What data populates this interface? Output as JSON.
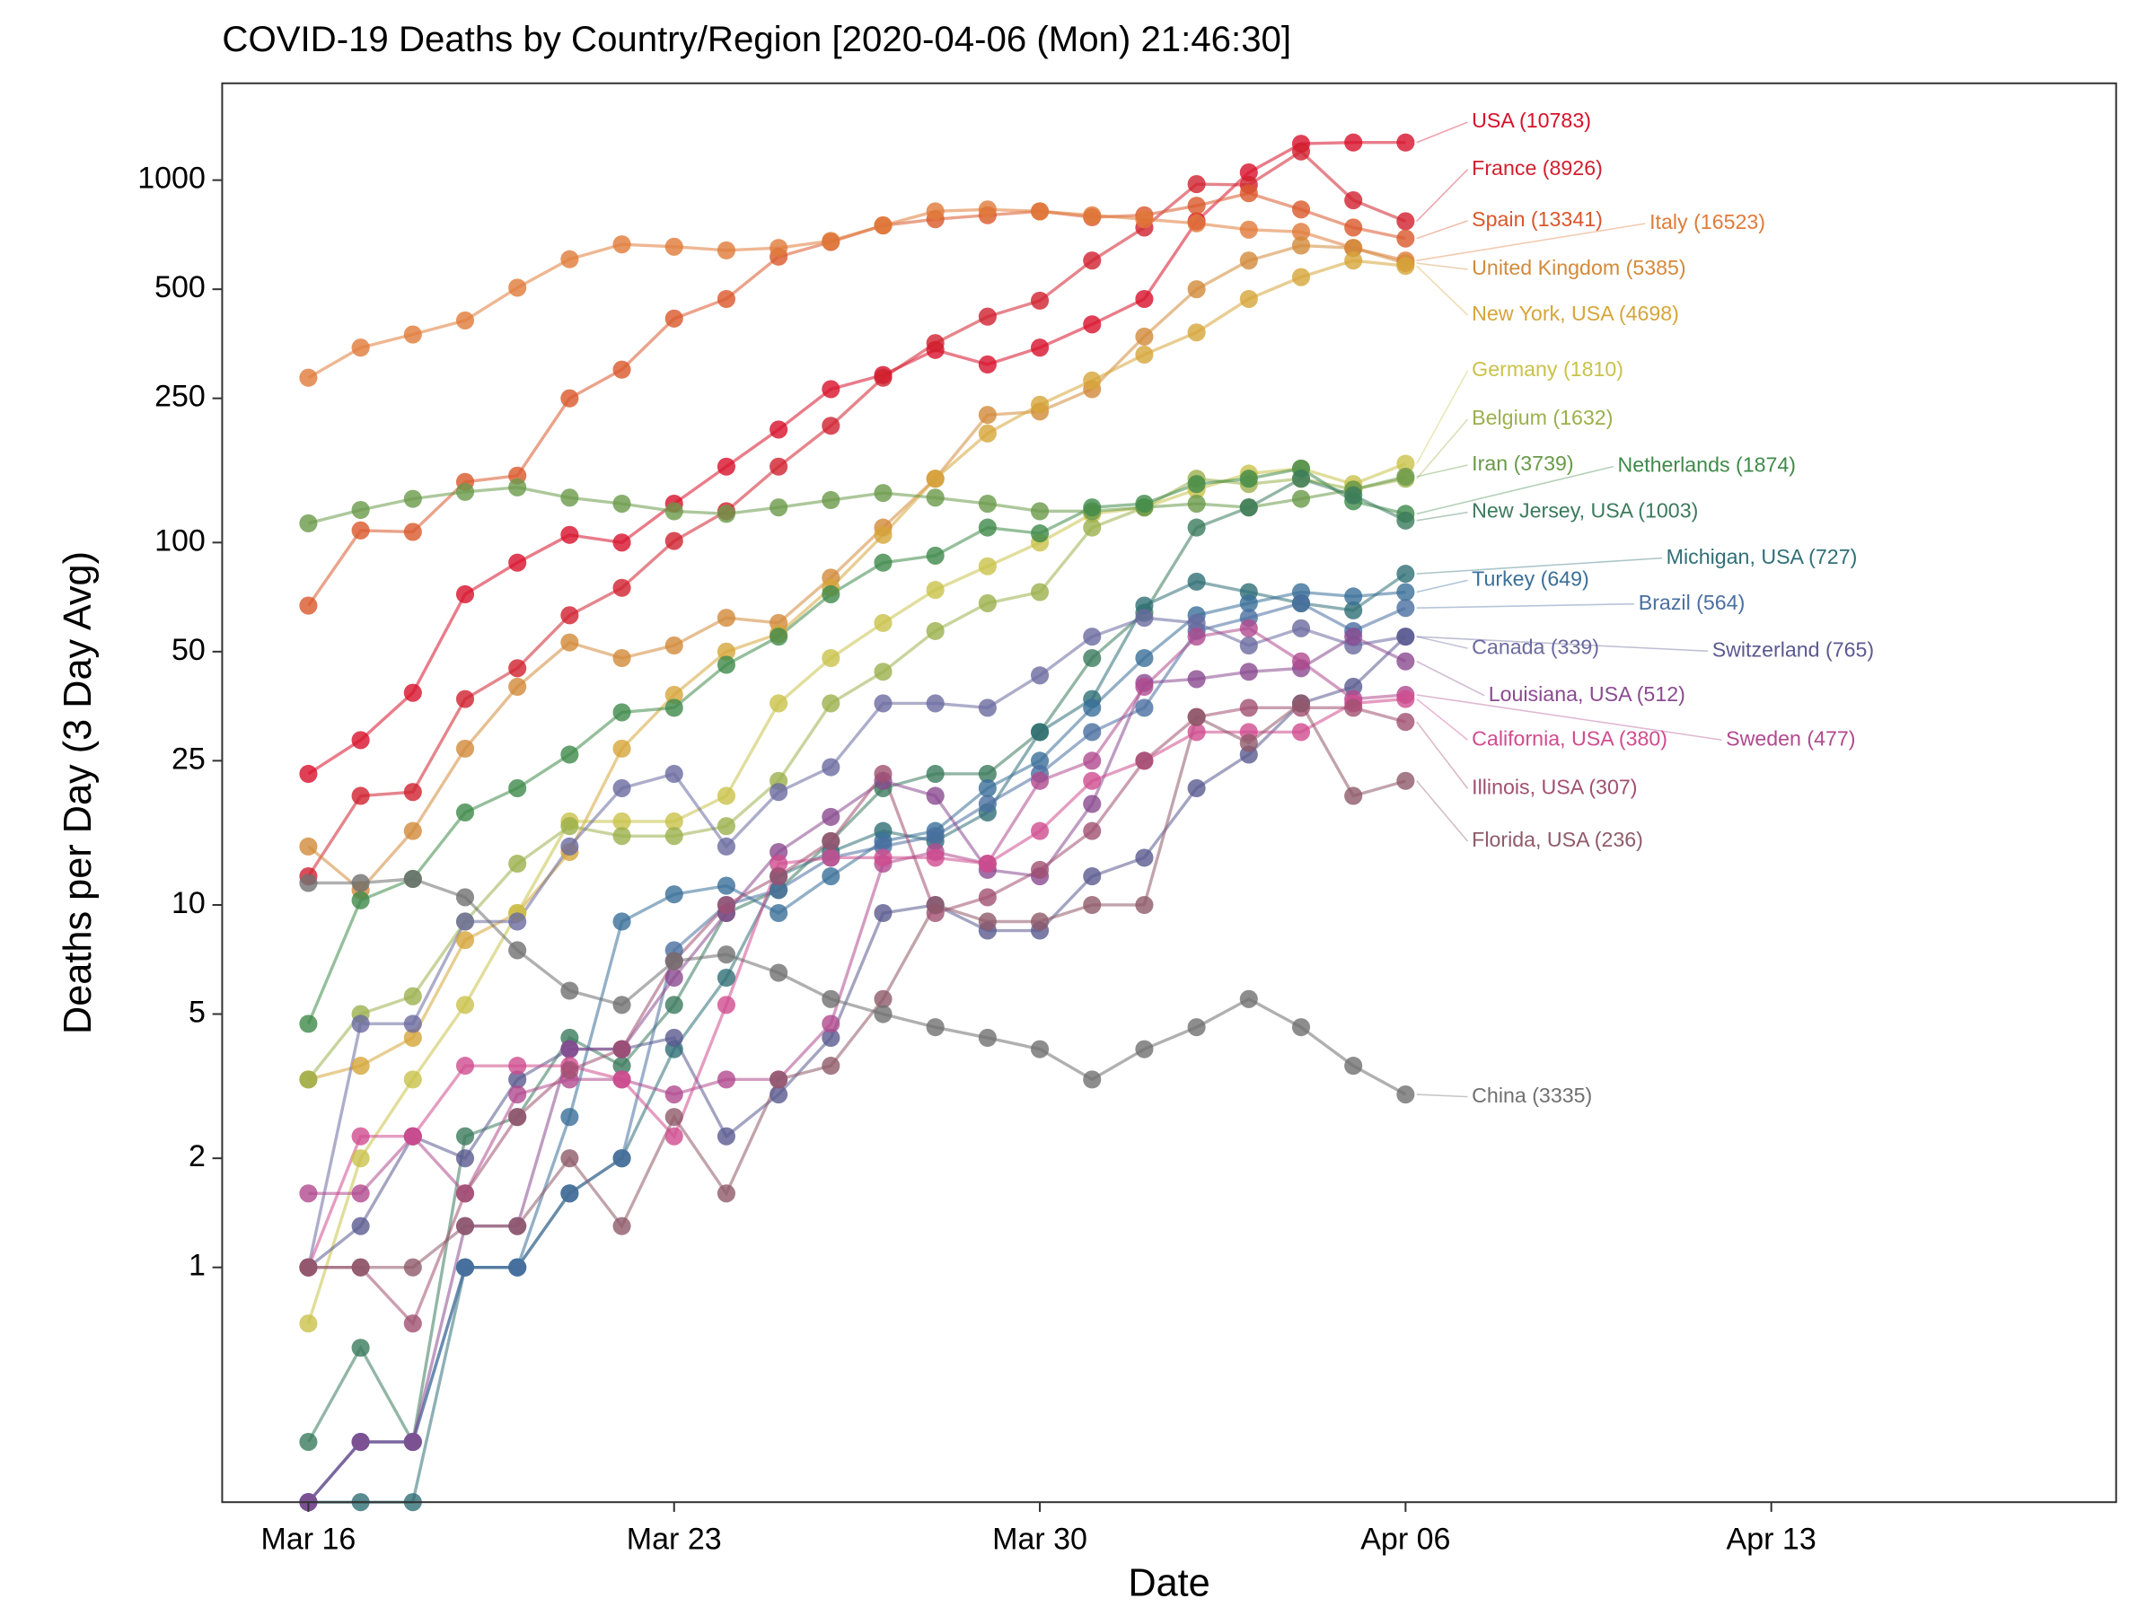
{
  "chart_data": {
    "type": "line",
    "title": "COVID-19 Deaths by Country/Region [2020-04-06 (Mon) 21:46:30]",
    "xlabel": "Date",
    "ylabel": "Deaths per Day (3 Day Avg)",
    "log_y": true,
    "x": [
      0,
      1,
      2,
      3,
      4,
      5,
      6,
      7,
      8,
      9,
      10,
      11,
      12,
      13,
      14,
      15,
      16,
      17,
      18,
      19,
      20,
      21
    ],
    "xlim": [
      -1.65,
      34.6
    ],
    "xticks": [
      {
        "value": 0,
        "label": "Mar 16"
      },
      {
        "value": 7,
        "label": "Mar 23"
      },
      {
        "value": 14,
        "label": "Mar 30"
      },
      {
        "value": 21,
        "label": "Apr 06"
      },
      {
        "value": 28,
        "label": "Apr 13"
      }
    ],
    "ylim": [
      0.225,
      1850
    ],
    "yticks": [
      1,
      2,
      5,
      10,
      25,
      50,
      100,
      250,
      500,
      1000
    ],
    "series": [
      {
        "name": "USA (10783)",
        "color": "#d7102a",
        "values": [
          23,
          28.5,
          38.5,
          72,
          88,
          105,
          100,
          128,
          162,
          205,
          265,
          290,
          340,
          310,
          345,
          400,
          470,
          770,
          1050,
          1260,
          1270,
          1270
        ]
      },
      {
        "name": "France (8926)",
        "color": "#d0202e",
        "values": [
          12,
          20,
          20.5,
          37,
          45,
          63,
          75,
          101,
          122,
          162,
          210,
          285,
          355,
          420,
          465,
          600,
          740,
          975,
          970,
          1200,
          880,
          770
        ]
      },
      {
        "name": "Spain (13341)",
        "color": "#d9572b",
        "values": [
          67,
          108,
          107,
          147,
          153,
          250,
          300,
          415,
          470,
          615,
          675,
          750,
          780,
          800,
          820,
          790,
          800,
          850,
          920,
          830,
          740,
          690
        ]
      },
      {
        "name": "Italy (16523)",
        "color": "#e07b39",
        "values": [
          285,
          345,
          375,
          410,
          505,
          605,
          665,
          655,
          640,
          650,
          680,
          750,
          820,
          830,
          820,
          800,
          780,
          760,
          730,
          720,
          650,
          600
        ]
      },
      {
        "name": "United Kingdom (5385)",
        "color": "#d28a3a",
        "values": [
          14.5,
          11,
          16,
          27,
          40,
          53,
          48,
          52,
          62,
          60,
          80,
          110,
          150,
          225,
          230,
          265,
          370,
          500,
          600,
          660,
          650,
          590
        ]
      },
      {
        "name": "New York, USA (4698)",
        "color": "#d6a53a",
        "values": [
          3.3,
          3.6,
          4.3,
          8,
          9.5,
          14,
          27,
          38,
          50,
          56,
          75,
          105,
          150,
          200,
          240,
          280,
          330,
          380,
          470,
          540,
          600,
          580
        ]
      },
      {
        "name": "Germany (1810)",
        "color": "#c9c24a",
        "values": [
          0.7,
          2,
          3.3,
          5.3,
          9.5,
          17,
          17,
          17,
          20,
          36,
          48,
          60,
          74,
          86,
          100,
          120,
          125,
          140,
          155,
          160,
          145,
          165
        ]
      },
      {
        "name": "Belgium (1632)",
        "color": "#9bb04c",
        "values": [
          3.3,
          5,
          5.6,
          9,
          13,
          16.5,
          15.5,
          15.5,
          16.5,
          22,
          36,
          44,
          57,
          68,
          73,
          110,
          125,
          150,
          145,
          150,
          140,
          150
        ]
      },
      {
        "name": "Iran (3739)",
        "color": "#6a9a4a",
        "values": [
          113,
          123,
          132,
          138,
          142,
          133,
          128,
          122,
          120,
          125,
          131,
          137,
          133,
          128,
          122,
          122,
          125,
          128,
          125,
          132,
          140,
          152
        ]
      },
      {
        "name": "Netherlands (1874)",
        "color": "#3f8a4a",
        "values": [
          4.7,
          10.3,
          11.8,
          18,
          21,
          26,
          34,
          35,
          46,
          55,
          72,
          88,
          92,
          110,
          106,
          125,
          128,
          145,
          150,
          160,
          130,
          120
        ]
      },
      {
        "name": "New Jersey, USA (1003)",
        "color": "#3b7a5c",
        "values": [
          0.33,
          0.6,
          0.33,
          2.3,
          2.6,
          4.3,
          3.6,
          5.3,
          9.5,
          11,
          15,
          21,
          23,
          23,
          30,
          48,
          64,
          110,
          125,
          150,
          135,
          115
        ]
      },
      {
        "name": "Michigan, USA (727)",
        "color": "#2f6f76",
        "values": [
          0.225,
          0.225,
          0.225,
          1,
          1,
          1.6,
          2,
          4,
          6.3,
          12,
          14,
          16,
          15,
          18,
          30,
          37,
          67,
          78,
          73,
          68,
          65,
          82
        ]
      },
      {
        "name": "Turkey (649)",
        "color": "#3a6f98",
        "values": [
          0.225,
          0.33,
          0.33,
          1,
          1,
          2.6,
          9,
          10.7,
          11.3,
          9.5,
          12,
          15,
          16,
          21,
          25,
          35,
          48,
          63,
          68,
          73,
          71,
          73
        ]
      },
      {
        "name": "Brazil (564)",
        "color": "#4a6fa0",
        "values": [
          0.225,
          0.33,
          0.33,
          1,
          1,
          1.6,
          2,
          7.5,
          10,
          11,
          13.5,
          14.5,
          15.5,
          19,
          23,
          30,
          35,
          57,
          62,
          68,
          57,
          66
        ]
      },
      {
        "name": "Canada (339)",
        "color": "#6a6aa0",
        "values": [
          1,
          4.7,
          4.7,
          9,
          9,
          14.5,
          21,
          23,
          14.5,
          20.5,
          24,
          36,
          36,
          35,
          43,
          55,
          62,
          60,
          52,
          58,
          52,
          55
        ]
      },
      {
        "name": "Switzerland (765)",
        "color": "#5a5a90",
        "values": [
          1,
          1.3,
          2.3,
          2,
          3.3,
          4,
          4,
          4.3,
          2.3,
          3,
          4.3,
          9.5,
          10,
          8.5,
          8.5,
          12,
          13.5,
          21,
          26,
          36,
          40,
          55
        ]
      },
      {
        "name": "Louisiana, USA (512)",
        "color": "#8a4a90",
        "values": [
          0.225,
          0.33,
          0.33,
          1.3,
          1.3,
          4,
          4,
          6.3,
          9.5,
          14,
          17.5,
          22,
          20,
          12.5,
          12,
          19,
          41,
          42,
          44,
          45,
          55,
          47
        ]
      },
      {
        "name": "Sweden (477)",
        "color": "#b04a8e",
        "values": [
          1.6,
          1.6,
          2.3,
          1.6,
          3,
          3.3,
          3.3,
          3,
          3.3,
          3.3,
          4.7,
          13,
          14,
          13,
          22,
          25,
          40,
          55,
          58,
          47,
          37,
          38
        ]
      },
      {
        "name": "California, USA (380)",
        "color": "#d04c8e",
        "values": [
          1,
          2.3,
          2.3,
          3.6,
          3.6,
          3.6,
          3.3,
          2.3,
          5.3,
          13,
          13.5,
          13.5,
          13.5,
          13,
          16,
          22,
          25,
          30,
          30,
          30,
          36,
          37
        ]
      },
      {
        "name": "Illinois, USA (307)",
        "color": "#a05070",
        "values": [
          1,
          1,
          0.7,
          1.6,
          2.6,
          3.5,
          4,
          7,
          10,
          12,
          15,
          23,
          9.5,
          10.5,
          12.5,
          16,
          25,
          33,
          35,
          35,
          35,
          32
        ]
      },
      {
        "name": "Florida, USA (236)",
        "color": "#8f5a6a",
        "values": [
          1,
          1,
          1,
          1.3,
          1.3,
          2,
          1.3,
          2.6,
          1.6,
          3.3,
          3.6,
          5.5,
          10,
          9,
          9,
          10,
          10,
          33,
          28,
          36,
          20,
          22
        ]
      },
      {
        "name": "China (3335)",
        "color": "#707070",
        "values": [
          11.5,
          11.5,
          11.8,
          10.5,
          7.5,
          5.8,
          5.3,
          7,
          7.3,
          6.5,
          5.5,
          5,
          4.6,
          4.3,
          4,
          3.3,
          4,
          4.6,
          5.5,
          4.6,
          3.6,
          3
        ]
      }
    ]
  }
}
